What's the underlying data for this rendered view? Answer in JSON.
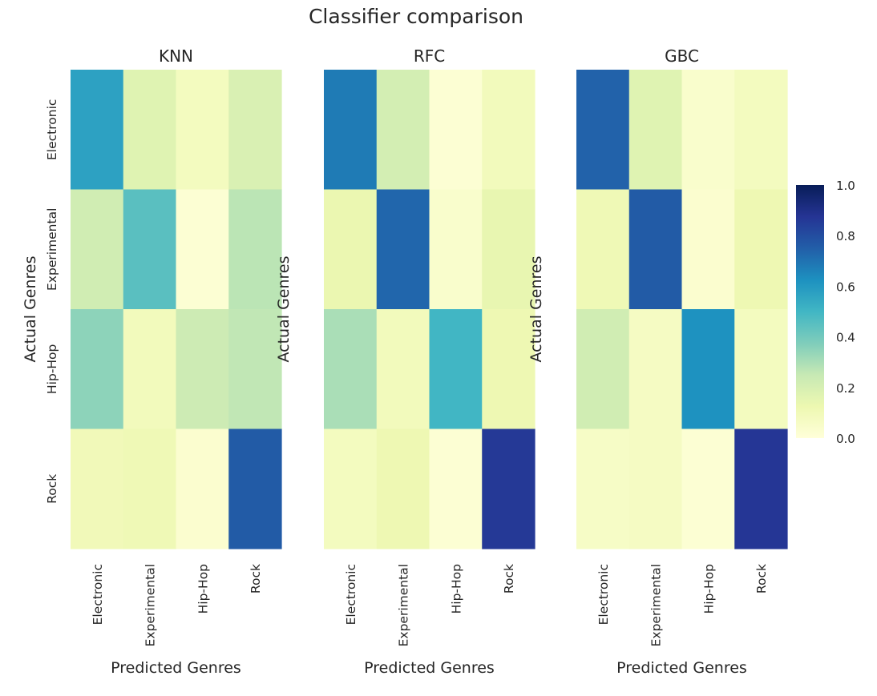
{
  "chart_data": {
    "type": "heatmap",
    "title": "Classifier comparison",
    "categories": [
      "Electronic",
      "Experimental",
      "Hip-Hop",
      "Rock"
    ],
    "xlabel": "Predicted Genres",
    "ylabel": "Actual Genres",
    "colormap": "YlGnBu",
    "colorbar": {
      "range": [
        0,
        1
      ],
      "ticks": [
        "0.0",
        "0.2",
        "0.4",
        "0.6",
        "0.8",
        "1.0"
      ]
    },
    "grid": false,
    "panels": [
      {
        "name": "KNN",
        "values": [
          [
            0.57,
            0.17,
            0.08,
            0.19
          ],
          [
            0.22,
            0.45,
            0.02,
            0.27
          ],
          [
            0.35,
            0.09,
            0.23,
            0.26
          ],
          [
            0.1,
            0.11,
            0.03,
            0.76
          ]
        ]
      },
      {
        "name": "RFC",
        "values": [
          [
            0.68,
            0.21,
            0.02,
            0.09
          ],
          [
            0.13,
            0.73,
            0.04,
            0.14
          ],
          [
            0.3,
            0.09,
            0.5,
            0.12
          ],
          [
            0.08,
            0.12,
            0.02,
            0.86
          ]
        ]
      },
      {
        "name": "GBC",
        "values": [
          [
            0.74,
            0.17,
            0.04,
            0.08
          ],
          [
            0.11,
            0.76,
            0.03,
            0.12
          ],
          [
            0.22,
            0.07,
            0.62,
            0.08
          ],
          [
            0.06,
            0.07,
            0.02,
            0.87
          ]
        ]
      }
    ]
  }
}
